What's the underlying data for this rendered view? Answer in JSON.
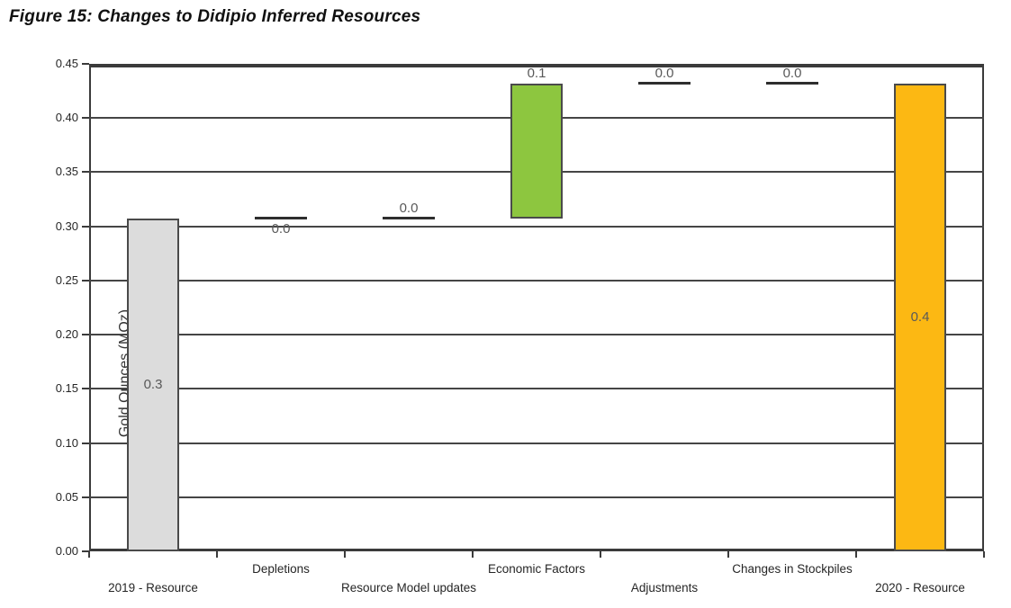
{
  "figure": {
    "title": "Figure 15: Changes to Didipio Inferred Resources"
  },
  "chart_data": {
    "type": "bar",
    "subtype": "waterfall",
    "title": "Figure 15: Changes to Didipio Inferred Resources",
    "xlabel": "",
    "ylabel": "Gold Ounces (MOz)",
    "ylim": [
      0,
      0.45
    ],
    "ytick_step": 0.05,
    "yticks": [
      "0.00",
      "0.05",
      "0.10",
      "0.15",
      "0.20",
      "0.25",
      "0.30",
      "0.35",
      "0.40",
      "0.45"
    ],
    "grid": true,
    "legend": false,
    "categories": [
      "2019 - Resource",
      "Depletions",
      "Resource Model updates",
      "Economic Factors",
      "Adjustments",
      "Changes in Stockpiles",
      "2020 - Resource"
    ],
    "bars": [
      {
        "category": "2019 - Resource",
        "kind": "total",
        "start": 0,
        "end": 0.307,
        "label": "0.3",
        "label_position": "center",
        "color": "#dcdcdc"
      },
      {
        "category": "Depletions",
        "kind": "connector",
        "value": 0,
        "level": 0.307,
        "label": "0.0",
        "label_position": "below"
      },
      {
        "category": "Resource Model updates",
        "kind": "connector",
        "value": 0,
        "level": 0.307,
        "label": "0.0",
        "label_position": "above"
      },
      {
        "category": "Economic Factors",
        "kind": "increase",
        "start": 0.307,
        "end": 0.432,
        "value": 0.125,
        "label": "0.1",
        "label_position": "above",
        "color": "#8dc63f"
      },
      {
        "category": "Adjustments",
        "kind": "connector",
        "value": 0,
        "level": 0.432,
        "label": "0.0",
        "label_position": "above"
      },
      {
        "category": "Changes in Stockpiles",
        "kind": "connector",
        "value": 0,
        "level": 0.432,
        "label": "0.0",
        "label_position": "above"
      },
      {
        "category": "2020 - Resource",
        "kind": "total",
        "start": 0,
        "end": 0.432,
        "label": "0.4",
        "label_position": "center",
        "color": "#fcb813"
      }
    ],
    "colors": {
      "axis": "#3b3b3b",
      "grid": "#454545",
      "connector": "#2e2e2e",
      "data_label": "#595959",
      "bar_border": "#4a4a4a",
      "tick_label": "#262626",
      "title_text": "#111111"
    }
  }
}
